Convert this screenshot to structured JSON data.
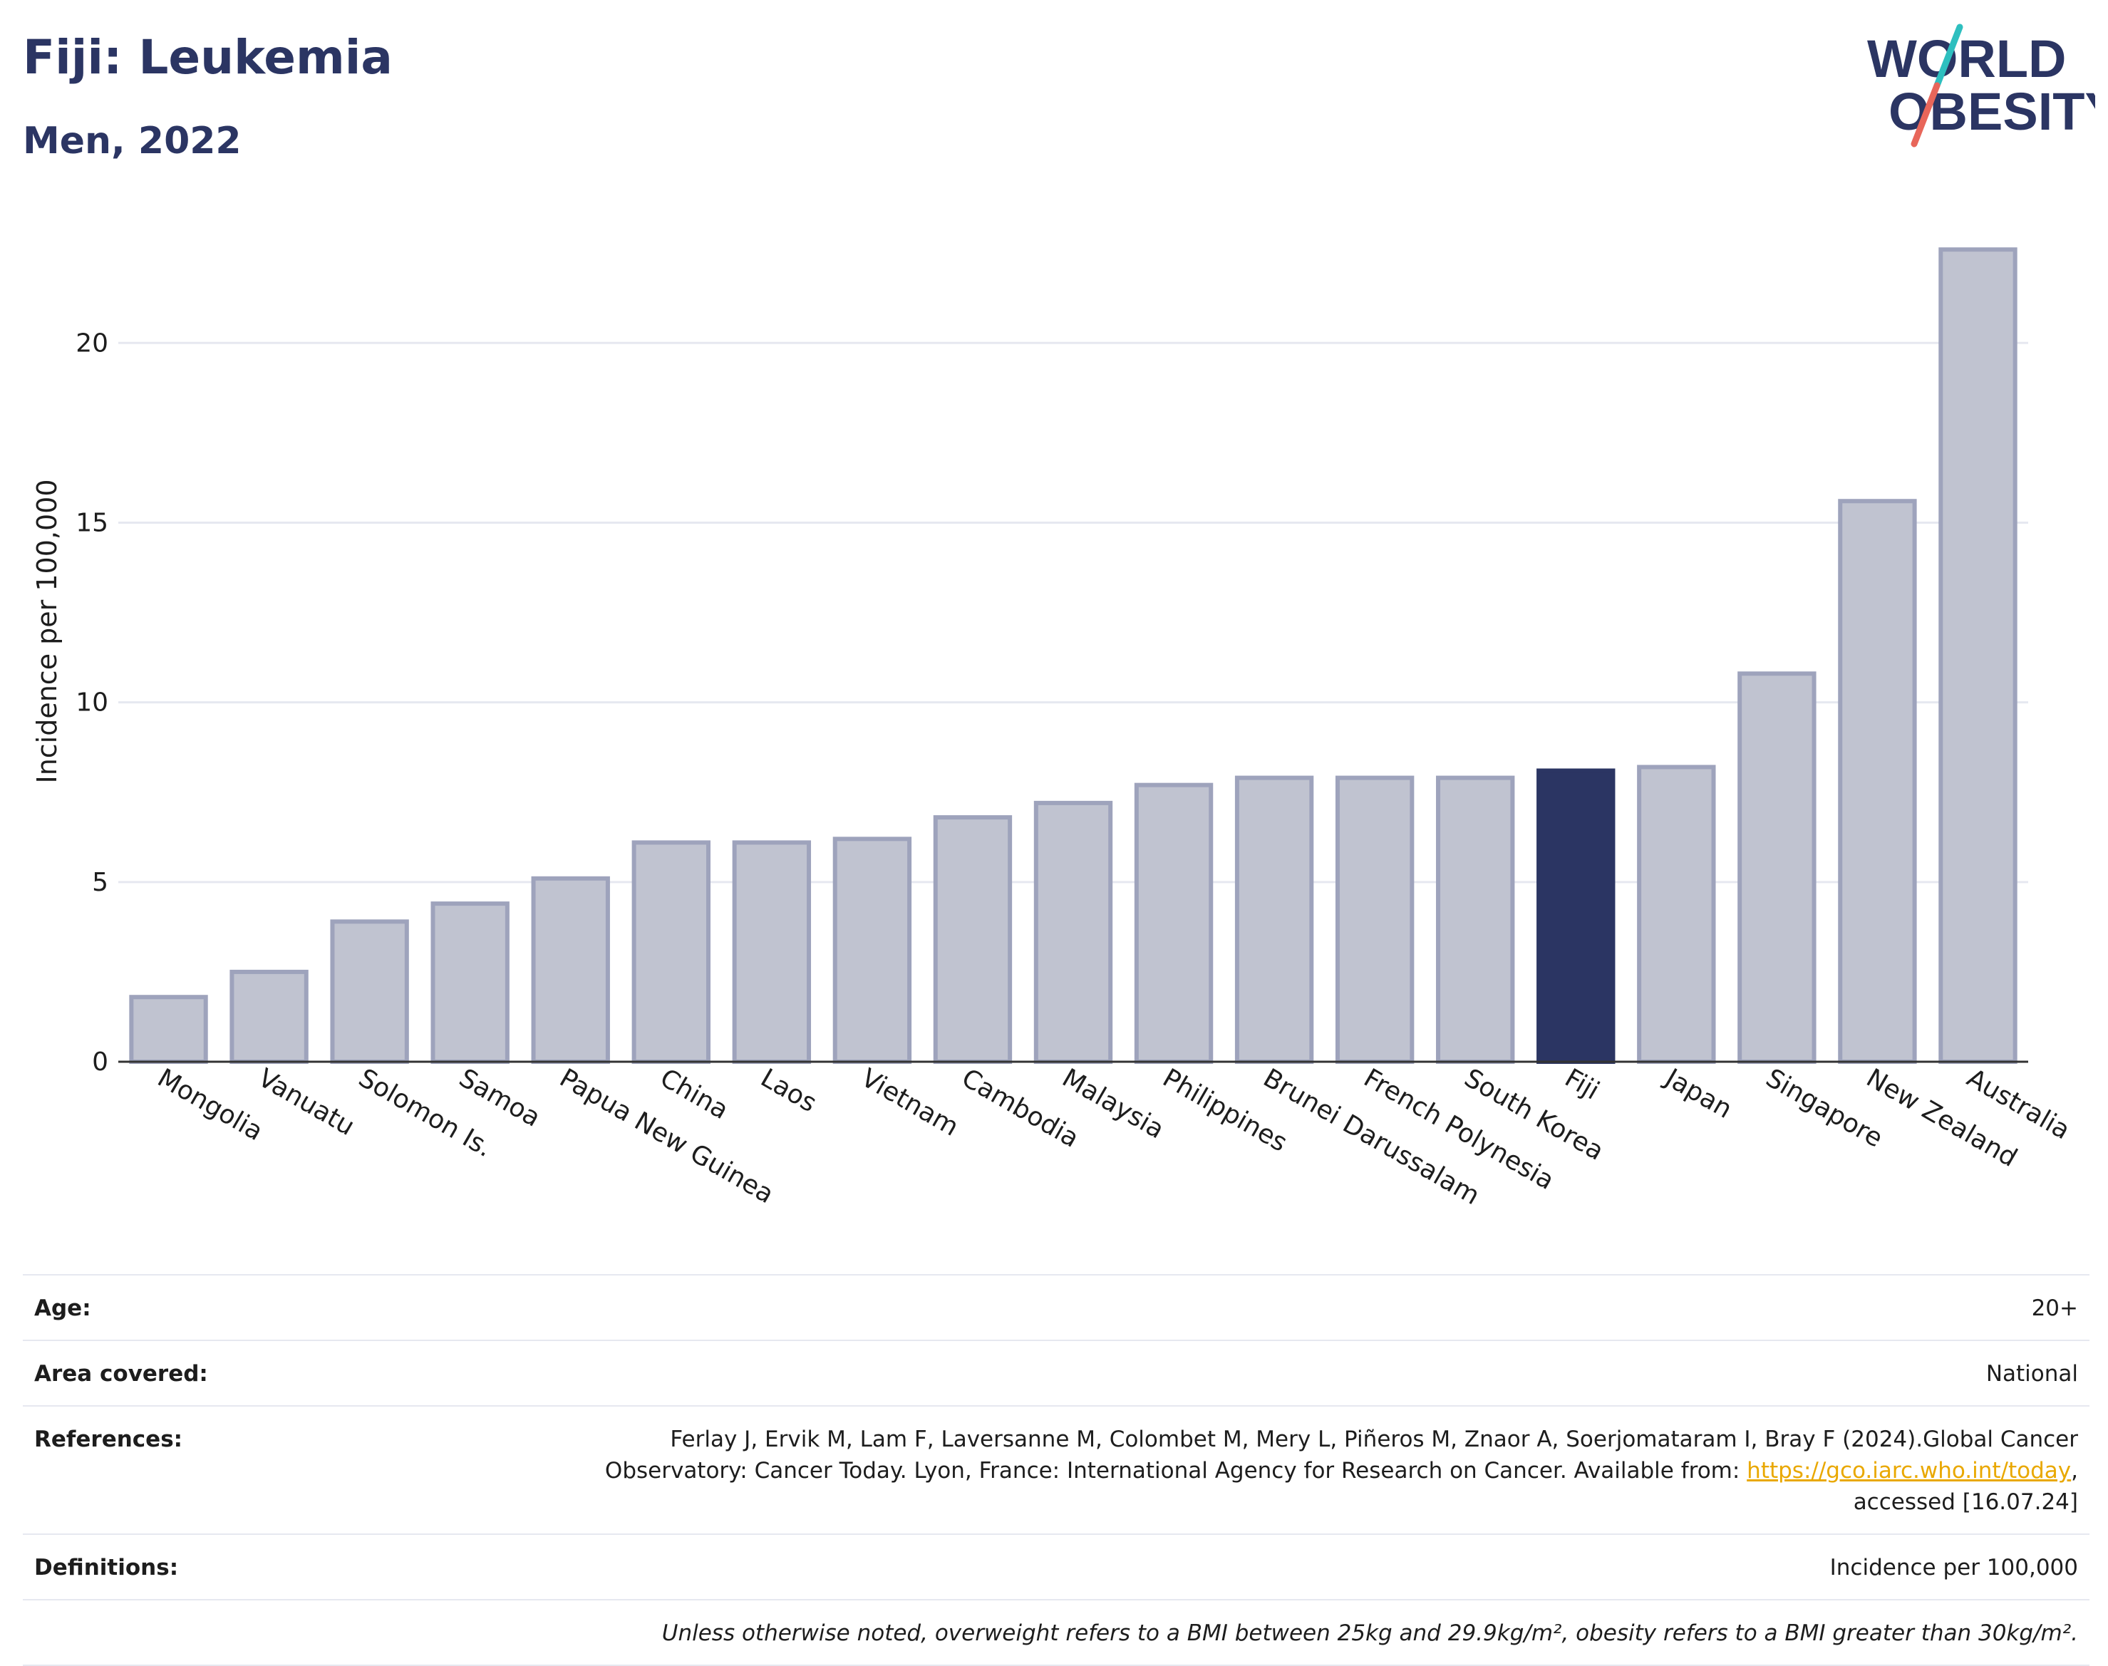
{
  "header": {
    "title": "Fiji: Leukemia",
    "subtitle": "Men, 2022"
  },
  "logo": {
    "line1": "WORLD",
    "line2": "OBESITY",
    "accent_colors": [
      "#2ebfbf",
      "#e8665a"
    ]
  },
  "chart_data": {
    "type": "bar",
    "categories": [
      "Mongolia",
      "Vanuatu",
      "Solomon Is.",
      "Samoa",
      "Papua New Guinea",
      "China",
      "Laos",
      "Vietnam",
      "Cambodia",
      "Malaysia",
      "Philippines",
      "Brunei Darussalam",
      "French Polynesia",
      "South Korea",
      "Fiji",
      "Japan",
      "Singapore",
      "New Zealand",
      "Australia"
    ],
    "values": [
      1.8,
      2.5,
      3.9,
      4.4,
      5.1,
      6.1,
      6.1,
      6.2,
      6.8,
      7.2,
      7.7,
      7.9,
      7.9,
      7.9,
      8.1,
      8.2,
      10.8,
      15.6,
      22.6
    ],
    "highlight": "Fiji",
    "ylabel": "Incidence per 100,000",
    "xlabel": "",
    "ylim": [
      0,
      23
    ],
    "yticks": [
      0,
      5,
      10,
      15,
      20
    ],
    "grid": true,
    "colors": {
      "bar": "#c0c3d0",
      "bar_stroke": "#9ea3bc",
      "highlight": "#2b3563",
      "grid": "#e6e8f0"
    }
  },
  "meta": [
    {
      "key": "Age:",
      "value": "20+"
    },
    {
      "key": "Area covered:",
      "value": "National"
    },
    {
      "key": "References:",
      "value_pre": "Ferlay J, Ervik M, Lam F, Laversanne M, Colombet M, Mery L, Piñeros M, Znaor A, Soerjomataram I, Bray F (2024).Global Cancer Observatory: Cancer Today. Lyon, France: International Agency for Research on Cancer. Available from: ",
      "link": "https://gco.iarc.who.int/today",
      "value_post": ", accessed [16.07.24]"
    },
    {
      "key": "Definitions:",
      "value": "Incidence per 100,000"
    }
  ],
  "footnote": "Unless otherwise noted, overweight refers to a BMI between 25kg and 29.9kg/m², obesity refers to a BMI greater than 30kg/m²."
}
